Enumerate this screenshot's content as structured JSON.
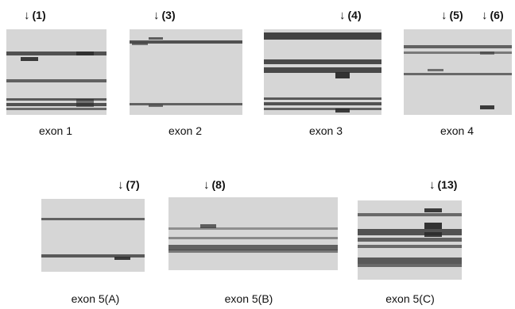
{
  "panels": [
    {
      "caption": "exon 1",
      "markers": [
        "(1)"
      ]
    },
    {
      "caption": "exon 2",
      "markers": [
        "(3)"
      ]
    },
    {
      "caption": "exon 3",
      "markers": [
        "(4)"
      ]
    },
    {
      "caption": "exon 4",
      "markers": [
        "(5)",
        "(6)"
      ]
    },
    {
      "caption": "exon 5(A)",
      "markers": [
        "(7)"
      ]
    },
    {
      "caption": "exon 5(B)",
      "markers": [
        "(8)"
      ]
    },
    {
      "caption": "exon 5(C)",
      "markers": [
        "(13)"
      ]
    }
  ],
  "arrow_glyph": "↓",
  "colors": {
    "gel": "#d6d6d6",
    "band": "#3a3a3a",
    "shifted_band": "#2a2a2a"
  }
}
